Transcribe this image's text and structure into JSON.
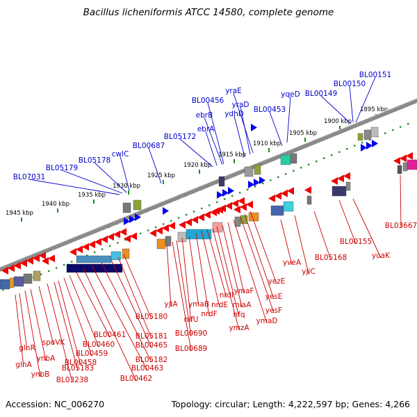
{
  "title": "Bacillus licheniformis ATCC 14580, complete genome",
  "accession": "Accession: NC_006270",
  "summary": "Topology: circular; Length: 4,222,597 bp; Genes: 4,266",
  "colors": {
    "forward": "#0000ee",
    "reverse": "#ee0000",
    "top_label": "#0000cc",
    "bottom_label": "#cc0000",
    "ruler_tick": "#228b22",
    "backbone": "#8a8a8a"
  },
  "ruler_labels": [
    "1945 kbp",
    "1940 kbp",
    "1935 kbp",
    "1930 kbp",
    "1925 kbp",
    "1920 kbp",
    "1915 kbp",
    "1910 kbp",
    "1905 kbp",
    "1900 kbp",
    "1895 kbp"
  ],
  "top_genes": [
    "BL07031",
    "BL05179",
    "BL05178",
    "cwlC",
    "BL00687",
    "BL05172",
    "ebrA",
    "ebrB",
    "BL00456",
    "ydhD",
    "yraD",
    "yraE",
    "BL00453",
    "yqeD",
    "BL00149",
    "BL00150",
    "BL00151"
  ],
  "bottom_genes": [
    "glnA",
    "glnR",
    "ynbB",
    "ynbA",
    "spoVK",
    "BL03238",
    "BL05183",
    "BL00458",
    "BL00459",
    "BL00460",
    "BL00461",
    "BL00462",
    "BL00463",
    "BL05182",
    "BL00465",
    "BL05181",
    "BL05180",
    "yjlA",
    "BL00689",
    "BL00690",
    "nifU",
    "ymaB",
    "nrdF",
    "nrdE",
    "nrdI",
    "ymzA",
    "hfq",
    "miaA",
    "ymaF",
    "ymaD",
    "yesF",
    "yesE",
    "yezE",
    "yveA",
    "yjiC",
    "BL05168",
    "BL00155",
    "yoaK",
    "BL03667"
  ]
}
